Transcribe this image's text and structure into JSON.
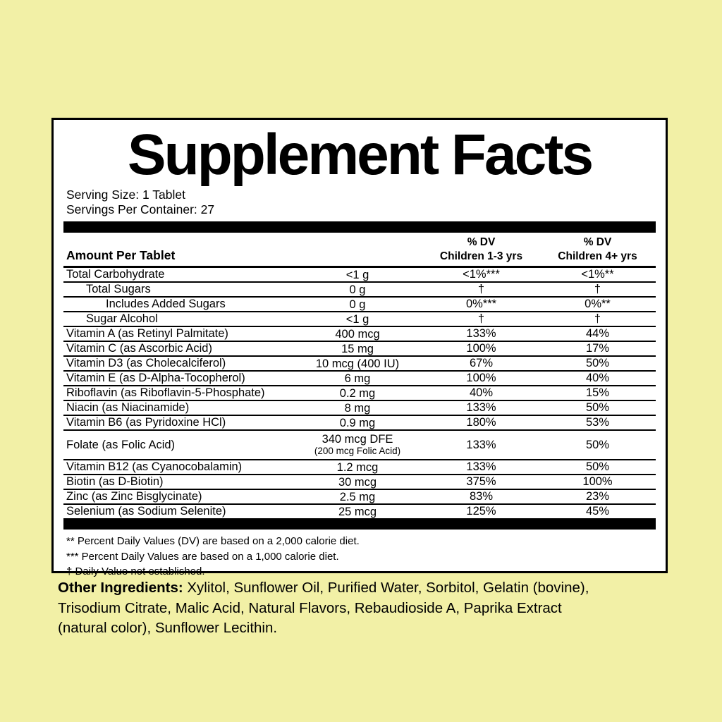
{
  "colors": {
    "background": "#f2f0a6",
    "panel_background": "#ffffff",
    "text": "#000000"
  },
  "panel": {
    "title": "Supplement Facts",
    "serving_size": "Serving Size: 1 Tablet",
    "servings_per_container": "Servings Per Container: 27",
    "columns": {
      "amount_header": "Amount Per Tablet",
      "dv1_line1": "% DV",
      "dv1_line2": "Children 1-3 yrs",
      "dv2_line1": "% DV",
      "dv2_line2": "Children 4+ yrs"
    },
    "rows": [
      {
        "name": "Total Carbohydrate",
        "indent": 0,
        "amount": "<1 g",
        "dv1": "<1%***",
        "dv2": "<1%**"
      },
      {
        "name": "Total Sugars",
        "indent": 1,
        "amount": "0 g",
        "dv1": "†",
        "dv2": "†"
      },
      {
        "name": "Includes Added Sugars",
        "indent": 2,
        "amount": "0 g",
        "dv1": "0%***",
        "dv2": "0%**"
      },
      {
        "name": "Sugar Alcohol",
        "indent": 1,
        "amount": "<1 g",
        "dv1": "†",
        "dv2": "†"
      },
      {
        "name": "Vitamin A (as Retinyl Palmitate)",
        "indent": 0,
        "amount": "400 mcg",
        "dv1": "133%",
        "dv2": "44%"
      },
      {
        "name": "Vitamin C (as Ascorbic Acid)",
        "indent": 0,
        "amount": "15 mg",
        "dv1": "100%",
        "dv2": "17%"
      },
      {
        "name": "Vitamin D3 (as Cholecalciferol)",
        "indent": 0,
        "amount": "10 mcg  (400 IU)",
        "dv1": "67%",
        "dv2": "50%"
      },
      {
        "name": "Vitamin E (as D-Alpha-Tocopherol)",
        "indent": 0,
        "amount": "6 mg",
        "dv1": "100%",
        "dv2": "40%"
      },
      {
        "name": "Riboflavin (as Riboflavin-5-Phosphate)",
        "indent": 0,
        "amount": "0.2 mg",
        "dv1": "40%",
        "dv2": "15%"
      },
      {
        "name": "Niacin (as Niacinamide)",
        "indent": 0,
        "amount": "8 mg",
        "dv1": "133%",
        "dv2": "50%"
      },
      {
        "name": "Vitamin B6 (as Pyridoxine HCl)",
        "indent": 0,
        "amount": "0.9 mg",
        "dv1": "180%",
        "dv2": "53%"
      },
      {
        "name": "Folate (as Folic Acid)",
        "indent": 0,
        "amount": "340 mcg  DFE",
        "amount_sub": "(200 mcg Folic Acid)",
        "dv1": "133%",
        "dv2": "50%"
      },
      {
        "name": "Vitamin B12 (as Cyanocobalamin)",
        "indent": 0,
        "amount": "1.2 mcg",
        "dv1": "133%",
        "dv2": "50%"
      },
      {
        "name": "Biotin (as D-Biotin)",
        "indent": 0,
        "amount": "30 mcg",
        "dv1": "375%",
        "dv2": "100%"
      },
      {
        "name": "Zinc (as Zinc Bisglycinate)",
        "indent": 0,
        "amount": "2.5 mg",
        "dv1": "83%",
        "dv2": "23%"
      },
      {
        "name": "Selenium (as Sodium Selenite)",
        "indent": 0,
        "amount": "25 mcg",
        "dv1": "125%",
        "dv2": "45%"
      }
    ],
    "footnotes": [
      "** Percent Daily Values (DV) are based on a 2,000 calorie diet.",
      "*** Percent Daily Values are based on a 1,000 calorie diet.",
      "† Daily Value not established."
    ]
  },
  "other_ingredients": {
    "label": "Other Ingredients:",
    "lines": [
      "Xylitol, Sunflower Oil, Purified Water, Sorbitol, Gelatin (bovine),",
      "Trisodium Citrate, Malic Acid, Natural Flavors, Rebaudioside A, Paprika Extract",
      "(natural color), Sunflower Lecithin."
    ]
  }
}
